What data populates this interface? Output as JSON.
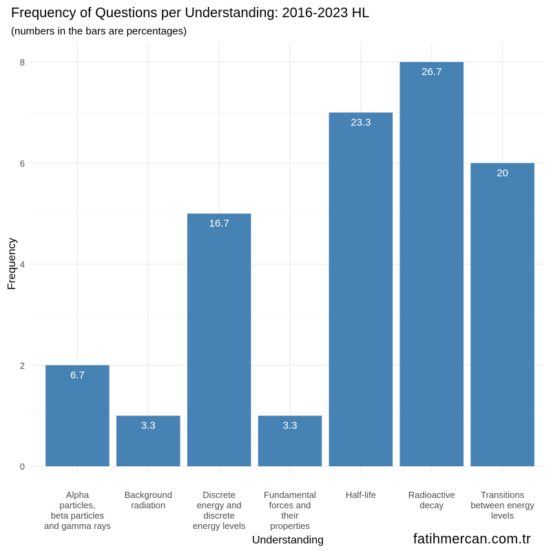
{
  "chart_data": {
    "type": "bar",
    "title": "Frequency of Questions per Understanding: 2016-2023 HL",
    "subtitle": "(numbers in the bars are percentages)",
    "xlabel": "Understanding",
    "ylabel": "Frequency",
    "ylim": [
      0,
      8
    ],
    "yticks": [
      0,
      2,
      4,
      6,
      8
    ],
    "grid": true,
    "bar_color": "#4682b4",
    "categories": [
      "Alpha particles, beta particles and gamma rays",
      "Background radiation",
      "Discrete energy and discrete energy levels",
      "Fundamental forces and their properties",
      "Half-life",
      "Radioactive decay",
      "Transitions between energy levels"
    ],
    "category_label_lines": [
      [
        "Alpha",
        "particles,",
        "beta particles",
        "and gamma rays"
      ],
      [
        "Background",
        "radiation"
      ],
      [
        "Discrete",
        "energy and",
        "discrete",
        "energy levels"
      ],
      [
        "Fundamental",
        "forces and",
        "their",
        "properties"
      ],
      [
        "Half-life"
      ],
      [
        "Radioactive",
        "decay"
      ],
      [
        "Transitions",
        "between energy",
        "levels"
      ]
    ],
    "values": [
      2,
      1,
      5,
      1,
      7,
      8,
      6
    ],
    "percent_labels": [
      "6.7",
      "3.3",
      "16.7",
      "3.3",
      "23.3",
      "26.7",
      "20"
    ]
  },
  "caption": "fatihmercan.com.tr"
}
